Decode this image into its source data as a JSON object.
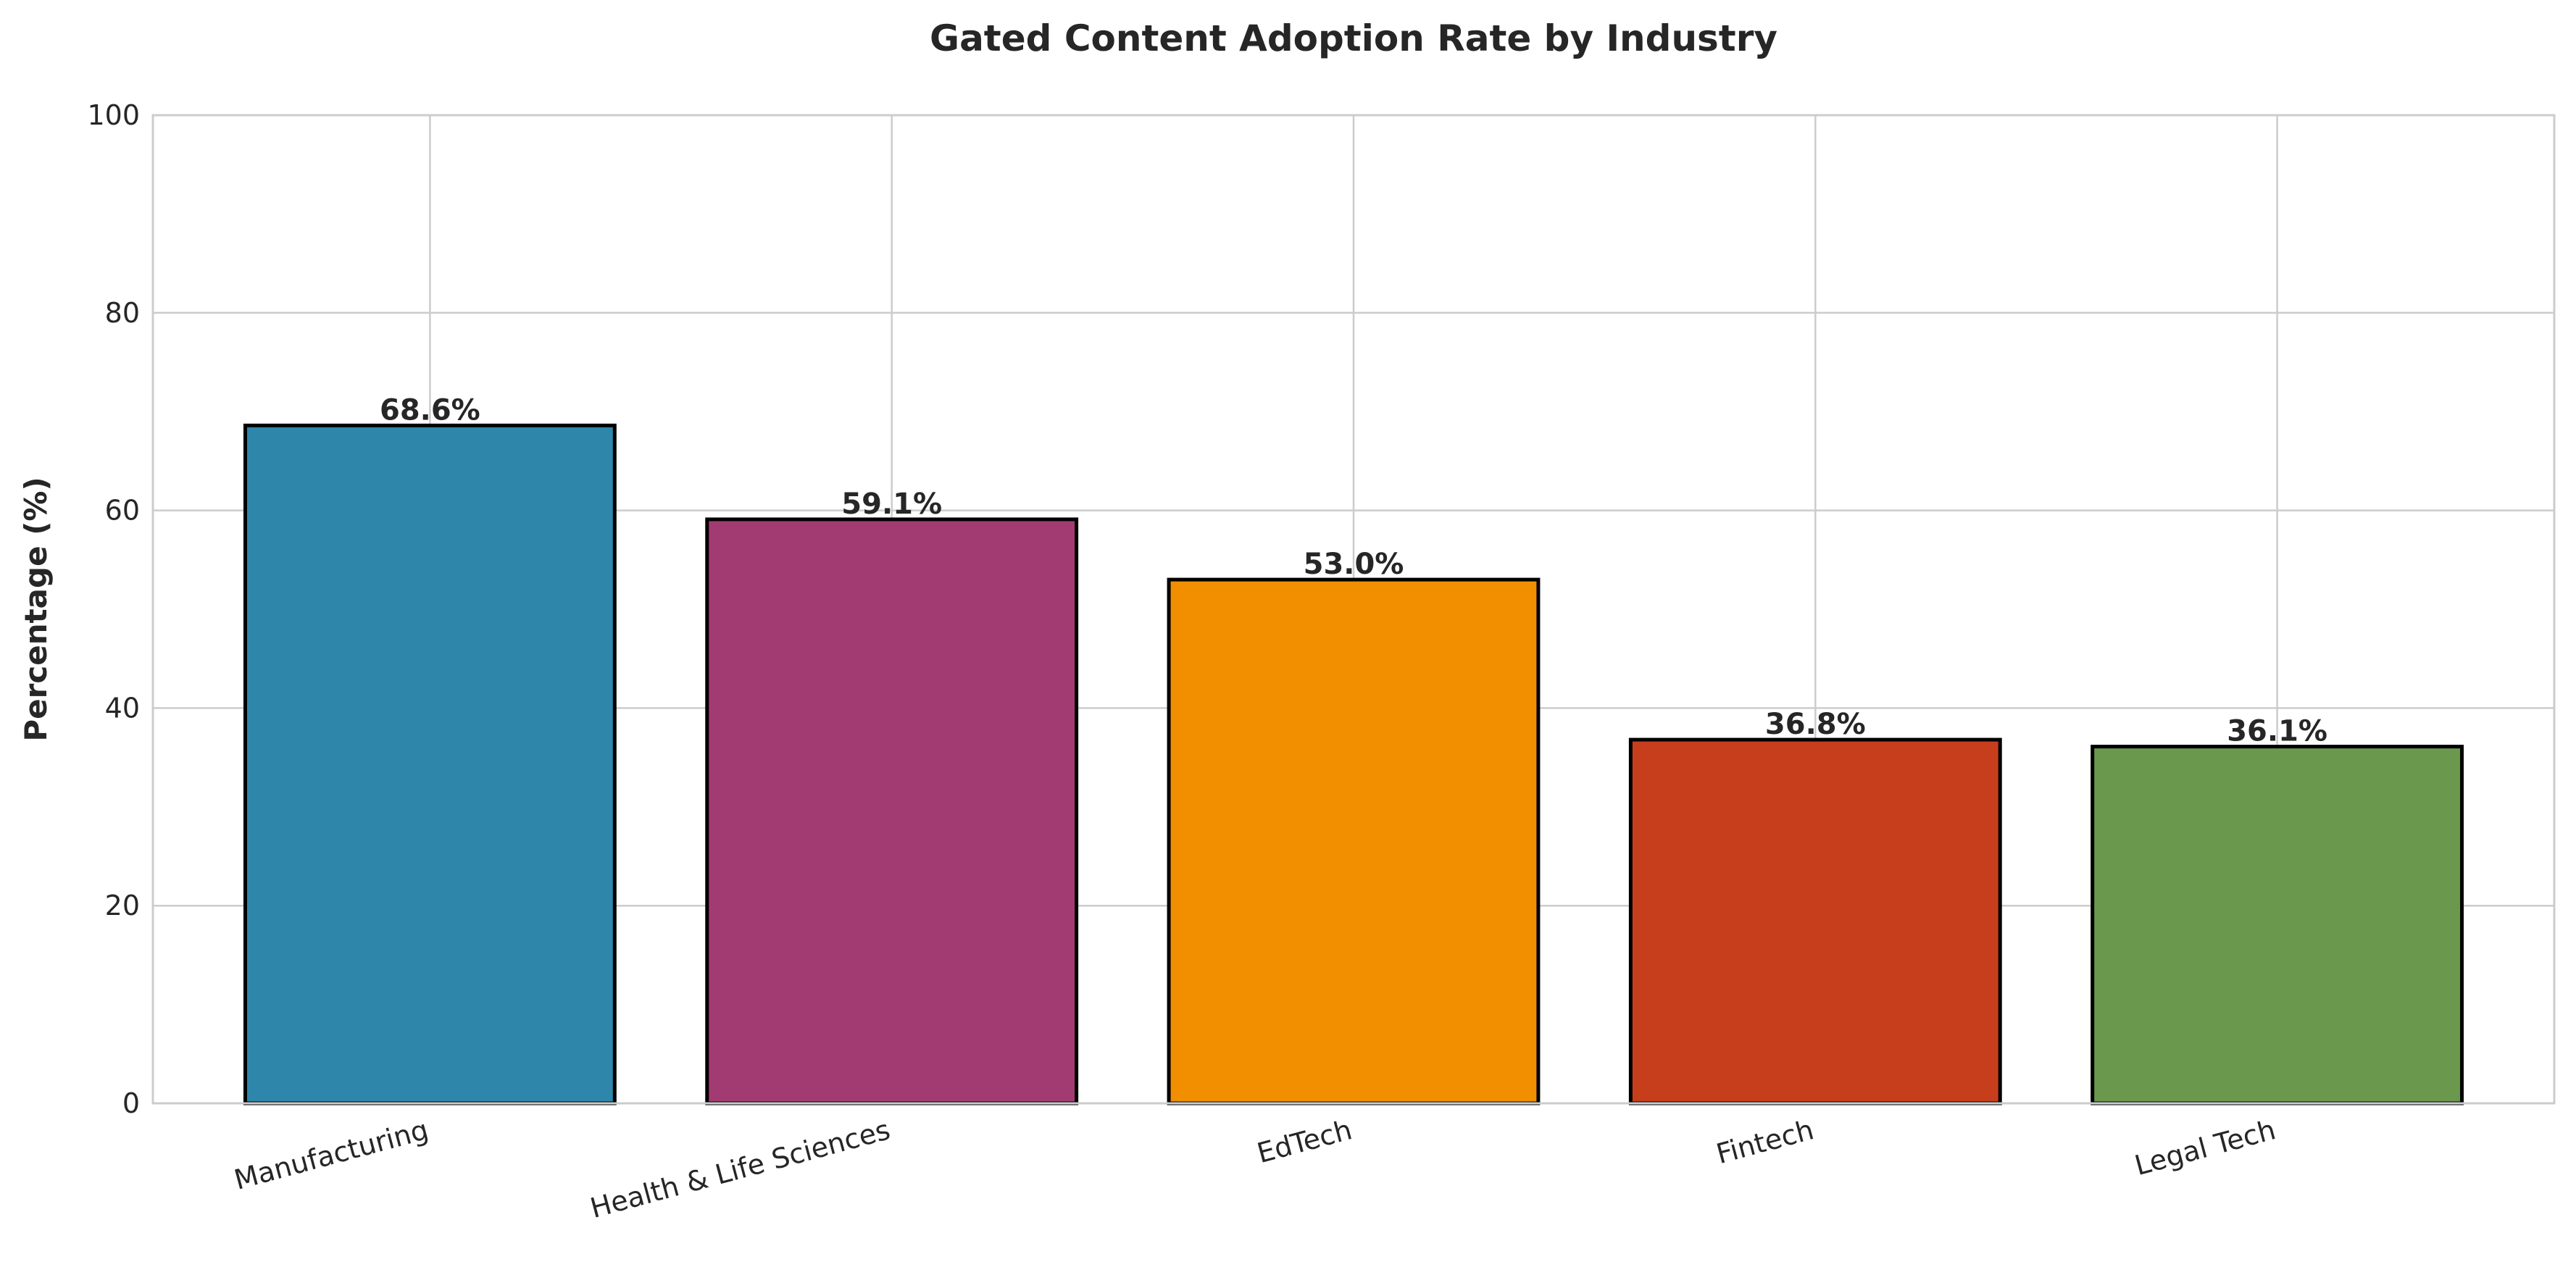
{
  "chart_data": {
    "type": "bar",
    "title": "Gated Content Adoption Rate by Industry",
    "xlabel": "",
    "ylabel": "Percentage (%)",
    "categories": [
      "Manufacturing",
      "Health & Life Sciences",
      "EdTech",
      "Fintech",
      "Legal Tech"
    ],
    "values": [
      68.6,
      59.1,
      53.0,
      36.8,
      36.1
    ],
    "data_labels": [
      "68.6%",
      "59.1%",
      "53.0%",
      "36.8%",
      "36.1%"
    ],
    "colors": [
      "#2E86AB",
      "#A23B72",
      "#F18F01",
      "#C73E1D",
      "#6A994E"
    ],
    "edge_color": "#000000",
    "ylim": [
      0,
      100
    ],
    "yticks": [
      "0",
      "20",
      "40",
      "60",
      "80",
      "100"
    ],
    "grid": true,
    "x_tick_rotation_deg": 15
  }
}
